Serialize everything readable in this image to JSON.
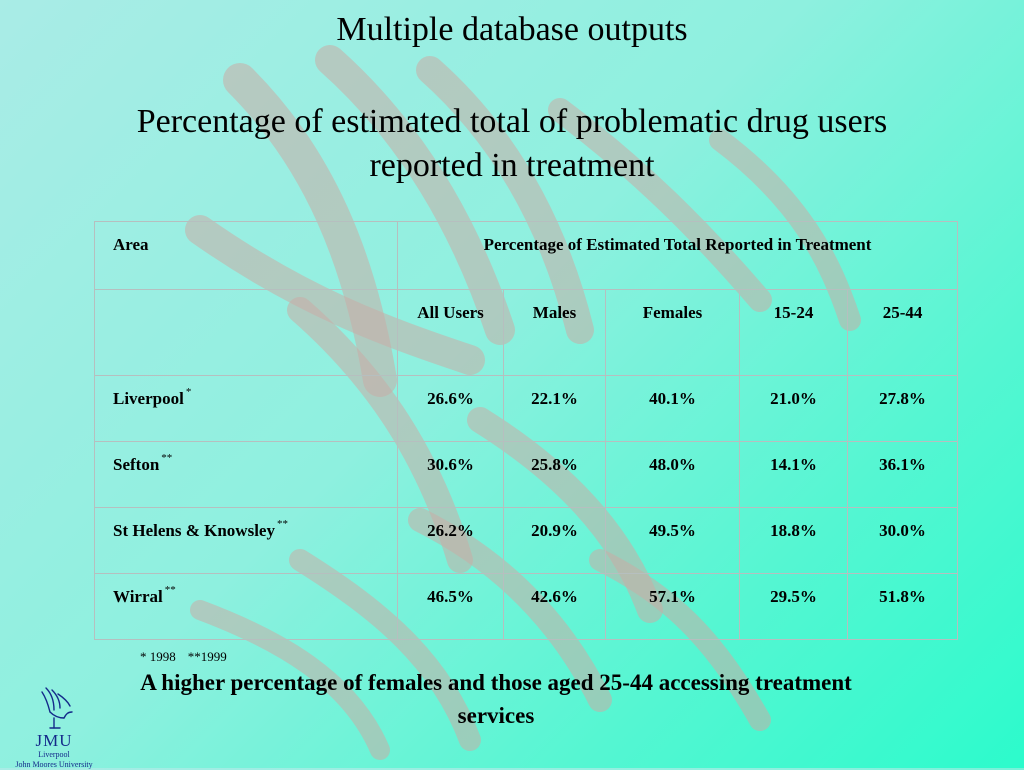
{
  "slide": {
    "title": "Multiple database outputs",
    "subtitle": "Percentage of estimated total of problematic drug users reported in treatment",
    "footnote": [
      "* 1998",
      "**1999"
    ],
    "conclusion": "A higher percentage of females and those aged 25-44 accessing treatment services"
  },
  "table": {
    "area_header": "Area",
    "group_header": "Percentage of Estimated Total Reported in Treatment",
    "columns": [
      "All Users",
      "Males",
      "Females",
      "15-24",
      "25-44"
    ],
    "rows": [
      {
        "area": "Liverpool",
        "mark": "*",
        "values": [
          "26.6%",
          "22.1%",
          "40.1%",
          "21.0%",
          "27.8%"
        ]
      },
      {
        "area": "Sefton",
        "mark": "**",
        "values": [
          "30.6%",
          "25.8%",
          "48.0%",
          "14.1%",
          "36.1%"
        ]
      },
      {
        "area": "St Helens & Knowsley",
        "mark": "**",
        "values": [
          "26.2%",
          "20.9%",
          "49.5%",
          "18.8%",
          "30.0%"
        ]
      },
      {
        "area": "Wirral",
        "mark": "**",
        "values": [
          "46.5%",
          "42.6%",
          "57.1%",
          "29.5%",
          "51.8%"
        ]
      }
    ]
  },
  "logo": {
    "name": "JMU",
    "line1": "Liverpool",
    "line2": "John Moores University",
    "color": "#142a8a"
  },
  "theme": {
    "background_start": "#a9ece6",
    "background_end": "#2cfbcc",
    "watermark": "#c9ada6"
  }
}
